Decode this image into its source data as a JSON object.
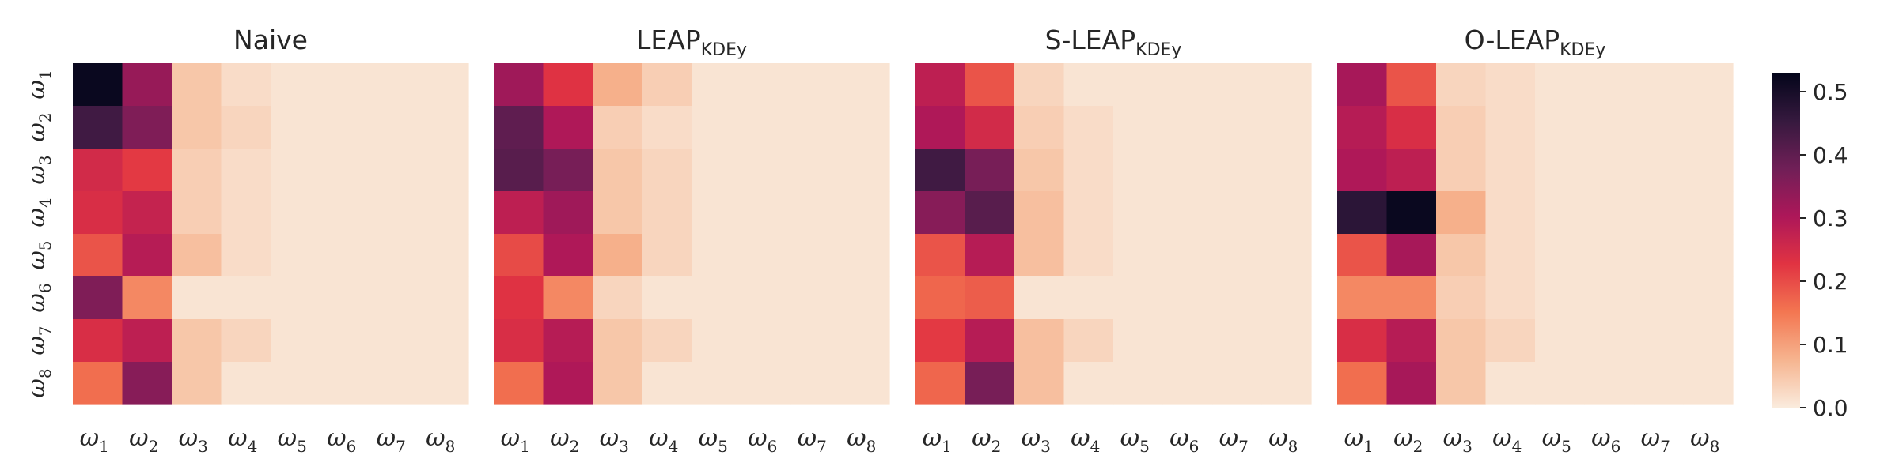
{
  "chart_data": [
    {
      "type": "heatmap",
      "title": "Naive",
      "title_sub": "",
      "row_labels": [
        "ω1",
        "ω2",
        "ω3",
        "ω4",
        "ω5",
        "ω6",
        "ω7",
        "ω8"
      ],
      "col_labels": [
        "ω1",
        "ω2",
        "ω3",
        "ω4",
        "ω5",
        "ω6",
        "ω7",
        "ω8"
      ],
      "values": [
        [
          0.52,
          0.33,
          0.05,
          0.02,
          0.01,
          0.01,
          0.01,
          0.01
        ],
        [
          0.44,
          0.36,
          0.05,
          0.03,
          0.01,
          0.01,
          0.01,
          0.01
        ],
        [
          0.25,
          0.22,
          0.04,
          0.02,
          0.01,
          0.01,
          0.01,
          0.01
        ],
        [
          0.24,
          0.27,
          0.04,
          0.02,
          0.01,
          0.01,
          0.01,
          0.01
        ],
        [
          0.19,
          0.29,
          0.06,
          0.02,
          0.01,
          0.01,
          0.01,
          0.01
        ],
        [
          0.36,
          0.13,
          0.01,
          0.01,
          0.01,
          0.01,
          0.01,
          0.01
        ],
        [
          0.24,
          0.28,
          0.05,
          0.03,
          0.01,
          0.01,
          0.01,
          0.01
        ],
        [
          0.16,
          0.35,
          0.05,
          0.01,
          0.01,
          0.01,
          0.01,
          0.01
        ]
      ]
    },
    {
      "type": "heatmap",
      "title": "LEAP",
      "title_sub": "KDEy",
      "row_labels": [
        "ω1",
        "ω2",
        "ω3",
        "ω4",
        "ω5",
        "ω6",
        "ω7",
        "ω8"
      ],
      "col_labels": [
        "ω1",
        "ω2",
        "ω3",
        "ω4",
        "ω5",
        "ω6",
        "ω7",
        "ω8"
      ],
      "values": [
        [
          0.32,
          0.23,
          0.08,
          0.04,
          0.01,
          0.01,
          0.01,
          0.01
        ],
        [
          0.4,
          0.3,
          0.04,
          0.02,
          0.01,
          0.01,
          0.01,
          0.01
        ],
        [
          0.41,
          0.37,
          0.05,
          0.03,
          0.01,
          0.01,
          0.01,
          0.01
        ],
        [
          0.28,
          0.32,
          0.05,
          0.03,
          0.01,
          0.01,
          0.01,
          0.01
        ],
        [
          0.2,
          0.3,
          0.08,
          0.03,
          0.01,
          0.01,
          0.01,
          0.01
        ],
        [
          0.23,
          0.13,
          0.03,
          0.01,
          0.01,
          0.01,
          0.01,
          0.01
        ],
        [
          0.24,
          0.29,
          0.05,
          0.03,
          0.01,
          0.01,
          0.01,
          0.01
        ],
        [
          0.16,
          0.3,
          0.05,
          0.01,
          0.01,
          0.01,
          0.01,
          0.01
        ]
      ]
    },
    {
      "type": "heatmap",
      "title": "S-LEAP",
      "title_sub": "KDEy",
      "row_labels": [
        "ω1",
        "ω2",
        "ω3",
        "ω4",
        "ω5",
        "ω6",
        "ω7",
        "ω8"
      ],
      "col_labels": [
        "ω1",
        "ω2",
        "ω3",
        "ω4",
        "ω5",
        "ω6",
        "ω7",
        "ω8"
      ],
      "values": [
        [
          0.28,
          0.19,
          0.03,
          0.01,
          0.01,
          0.01,
          0.01,
          0.01
        ],
        [
          0.3,
          0.25,
          0.04,
          0.02,
          0.01,
          0.01,
          0.01,
          0.01
        ],
        [
          0.44,
          0.37,
          0.05,
          0.02,
          0.01,
          0.01,
          0.01,
          0.01
        ],
        [
          0.35,
          0.41,
          0.06,
          0.02,
          0.01,
          0.01,
          0.01,
          0.01
        ],
        [
          0.19,
          0.29,
          0.06,
          0.02,
          0.01,
          0.01,
          0.01,
          0.01
        ],
        [
          0.17,
          0.18,
          0.01,
          0.01,
          0.01,
          0.01,
          0.01,
          0.01
        ],
        [
          0.22,
          0.29,
          0.06,
          0.03,
          0.01,
          0.01,
          0.01,
          0.01
        ],
        [
          0.17,
          0.37,
          0.06,
          0.01,
          0.01,
          0.01,
          0.01,
          0.01
        ]
      ]
    },
    {
      "type": "heatmap",
      "title": "O-LEAP",
      "title_sub": "KDEy",
      "row_labels": [
        "ω1",
        "ω2",
        "ω3",
        "ω4",
        "ω5",
        "ω6",
        "ω7",
        "ω8"
      ],
      "col_labels": [
        "ω1",
        "ω2",
        "ω3",
        "ω4",
        "ω5",
        "ω6",
        "ω7",
        "ω8"
      ],
      "values": [
        [
          0.31,
          0.19,
          0.03,
          0.02,
          0.01,
          0.01,
          0.01,
          0.01
        ],
        [
          0.29,
          0.24,
          0.04,
          0.02,
          0.01,
          0.01,
          0.01,
          0.01
        ],
        [
          0.3,
          0.28,
          0.04,
          0.02,
          0.01,
          0.01,
          0.01,
          0.01
        ],
        [
          0.47,
          0.52,
          0.08,
          0.02,
          0.01,
          0.01,
          0.01,
          0.01
        ],
        [
          0.19,
          0.31,
          0.05,
          0.02,
          0.01,
          0.01,
          0.01,
          0.01
        ],
        [
          0.13,
          0.13,
          0.04,
          0.02,
          0.01,
          0.01,
          0.01,
          0.01
        ],
        [
          0.24,
          0.29,
          0.05,
          0.03,
          0.01,
          0.01,
          0.01,
          0.01
        ],
        [
          0.16,
          0.31,
          0.05,
          0.01,
          0.01,
          0.01,
          0.01,
          0.01
        ]
      ]
    }
  ],
  "colorbar": {
    "colormap": "rocket_r",
    "range": [
      0.0,
      0.53
    ],
    "ticks": [
      0.0,
      0.1,
      0.2,
      0.3,
      0.4,
      0.5
    ],
    "tick_labels": [
      "0.0",
      "0.1",
      "0.2",
      "0.3",
      "0.4",
      "0.5"
    ],
    "stops": [
      "#faebdd",
      "#f6b48f",
      "#f37651",
      "#e13342",
      "#ad1759",
      "#701f57",
      "#35193e",
      "#03051a"
    ]
  }
}
